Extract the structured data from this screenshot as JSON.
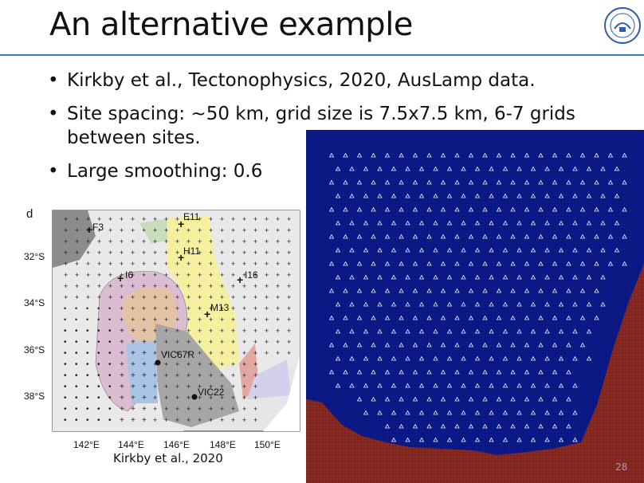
{
  "slide": {
    "title": "An alternative example",
    "bullets": [
      "Kirkby et al., Tectonophysics, 2020, AusLamp data.",
      "Site spacing: ~50 km, grid size is 7.5x7.5 km, 6-7 grids between sites.",
      "Large smoothing: 0.6"
    ],
    "bullet_marker": "•",
    "page_number": "28",
    "caption": "Kirkby et al., 2020"
  },
  "map": {
    "panel_label": "d",
    "lat_labels": [
      "32°S",
      "34°S",
      "36°S",
      "38°S"
    ],
    "lon_labels": [
      "142°E",
      "144°E",
      "146°E",
      "148°E",
      "150°E"
    ],
    "site_labels": [
      "F3",
      "E11",
      "H11",
      "I6",
      "I16",
      "M13",
      "VIC67R",
      "VIC22"
    ]
  },
  "colors": {
    "accent_rule": "#3a78c2",
    "ocean_blue": "#0b1a8c",
    "land_red": "#8b2a22"
  }
}
